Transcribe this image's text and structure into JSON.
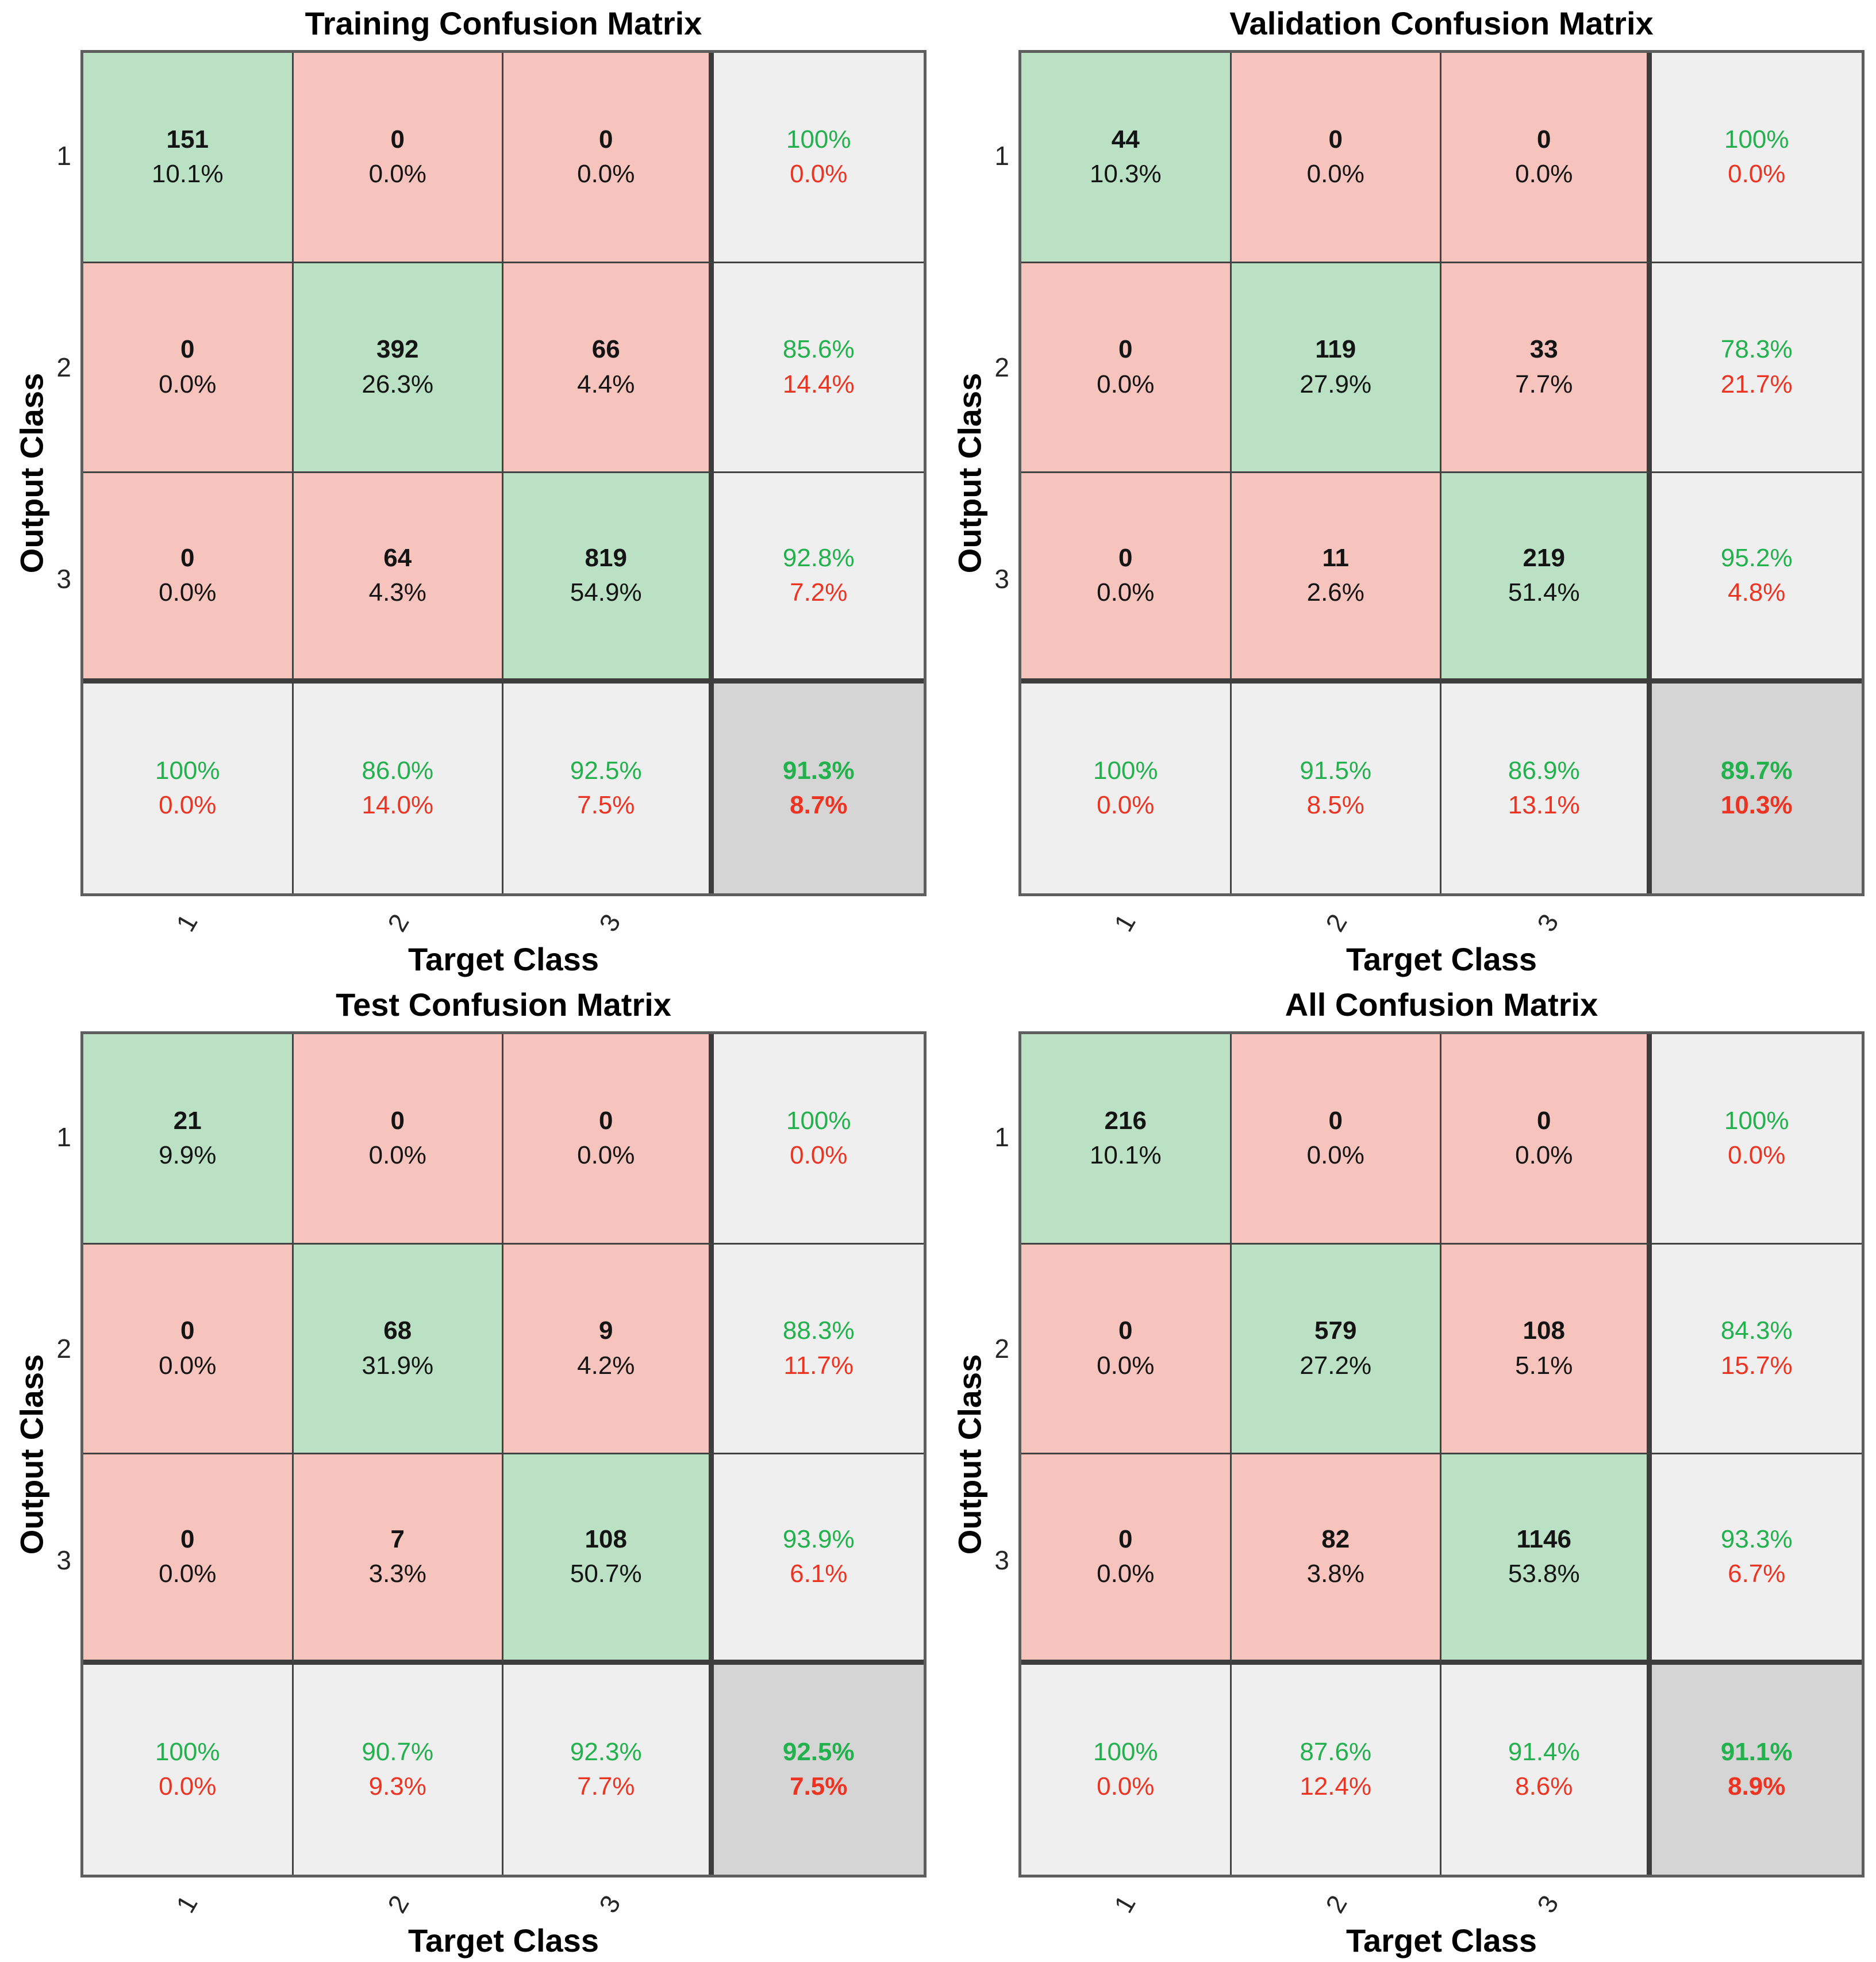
{
  "colors": {
    "diagonal_cell": "#bae1c4",
    "off_diagonal_cell": "#f6c3bd",
    "summary_cell": "#efefef",
    "corner_cell": "#d5d5d5",
    "good_text_green": "#23b14d",
    "bad_text_red": "#ec3423",
    "grid_line": "#434343",
    "thick_separator": "#3d3d3d"
  },
  "chart_data": [
    {
      "type": "heatmap",
      "title": "Training Confusion Matrix",
      "xlabel": "Target Class",
      "ylabel": "Output Class",
      "classes": [
        "1",
        "2",
        "3"
      ],
      "counts": [
        [
          151,
          0,
          0
        ],
        [
          0,
          392,
          66
        ],
        [
          0,
          64,
          819
        ]
      ],
      "cell_pcts": [
        [
          "10.1%",
          "0.0%",
          "0.0%"
        ],
        [
          "0.0%",
          "26.3%",
          "4.4%"
        ],
        [
          "0.0%",
          "4.3%",
          "54.9%"
        ]
      ],
      "row_summary": [
        [
          "100%",
          "0.0%"
        ],
        [
          "85.6%",
          "14.4%"
        ],
        [
          "92.8%",
          "7.2%"
        ]
      ],
      "col_summary": [
        [
          "100%",
          "0.0%"
        ],
        [
          "86.0%",
          "14.0%"
        ],
        [
          "92.5%",
          "7.5%"
        ]
      ],
      "overall": [
        "91.3%",
        "8.7%"
      ]
    },
    {
      "type": "heatmap",
      "title": "Validation Confusion Matrix",
      "xlabel": "Target Class",
      "ylabel": "Output Class",
      "classes": [
        "1",
        "2",
        "3"
      ],
      "counts": [
        [
          44,
          0,
          0
        ],
        [
          0,
          119,
          33
        ],
        [
          0,
          11,
          219
        ]
      ],
      "cell_pcts": [
        [
          "10.3%",
          "0.0%",
          "0.0%"
        ],
        [
          "0.0%",
          "27.9%",
          "7.7%"
        ],
        [
          "0.0%",
          "2.6%",
          "51.4%"
        ]
      ],
      "row_summary": [
        [
          "100%",
          "0.0%"
        ],
        [
          "78.3%",
          "21.7%"
        ],
        [
          "95.2%",
          "4.8%"
        ]
      ],
      "col_summary": [
        [
          "100%",
          "0.0%"
        ],
        [
          "91.5%",
          "8.5%"
        ],
        [
          "86.9%",
          "13.1%"
        ]
      ],
      "overall": [
        "89.7%",
        "10.3%"
      ]
    },
    {
      "type": "heatmap",
      "title": "Test Confusion Matrix",
      "xlabel": "Target Class",
      "ylabel": "Output Class",
      "classes": [
        "1",
        "2",
        "3"
      ],
      "counts": [
        [
          21,
          0,
          0
        ],
        [
          0,
          68,
          9
        ],
        [
          0,
          7,
          108
        ]
      ],
      "cell_pcts": [
        [
          "9.9%",
          "0.0%",
          "0.0%"
        ],
        [
          "0.0%",
          "31.9%",
          "4.2%"
        ],
        [
          "0.0%",
          "3.3%",
          "50.7%"
        ]
      ],
      "row_summary": [
        [
          "100%",
          "0.0%"
        ],
        [
          "88.3%",
          "11.7%"
        ],
        [
          "93.9%",
          "6.1%"
        ]
      ],
      "col_summary": [
        [
          "100%",
          "0.0%"
        ],
        [
          "90.7%",
          "9.3%"
        ],
        [
          "92.3%",
          "7.7%"
        ]
      ],
      "overall": [
        "92.5%",
        "7.5%"
      ]
    },
    {
      "type": "heatmap",
      "title": "All Confusion Matrix",
      "xlabel": "Target Class",
      "ylabel": "Output Class",
      "classes": [
        "1",
        "2",
        "3"
      ],
      "counts": [
        [
          216,
          0,
          0
        ],
        [
          0,
          579,
          108
        ],
        [
          0,
          82,
          1146
        ]
      ],
      "cell_pcts": [
        [
          "10.1%",
          "0.0%",
          "0.0%"
        ],
        [
          "0.0%",
          "27.2%",
          "5.1%"
        ],
        [
          "0.0%",
          "3.8%",
          "53.8%"
        ]
      ],
      "row_summary": [
        [
          "100%",
          "0.0%"
        ],
        [
          "84.3%",
          "15.7%"
        ],
        [
          "93.3%",
          "6.7%"
        ]
      ],
      "col_summary": [
        [
          "100%",
          "0.0%"
        ],
        [
          "87.6%",
          "12.4%"
        ],
        [
          "91.4%",
          "8.6%"
        ]
      ],
      "overall": [
        "91.1%",
        "8.9%"
      ]
    }
  ]
}
